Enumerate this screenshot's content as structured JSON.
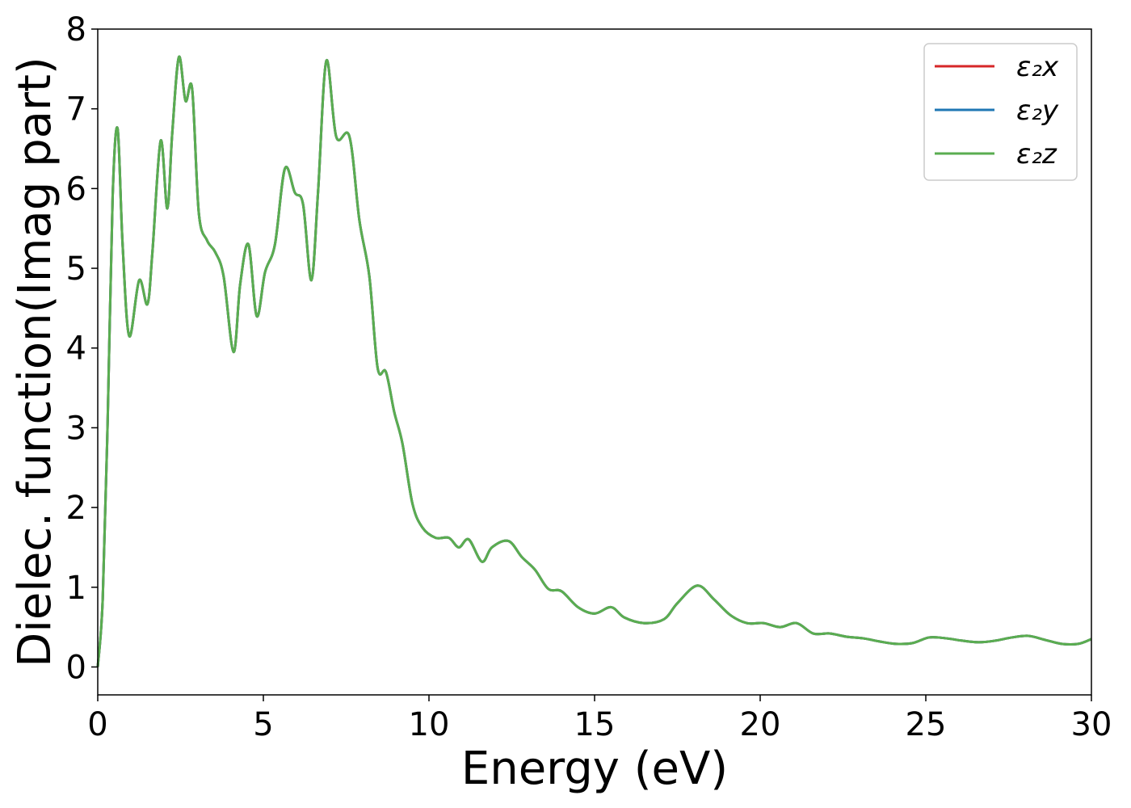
{
  "chart_data": {
    "type": "line",
    "title": "",
    "xlabel": "Energy (eV)",
    "ylabel": "Dielec. function(Imag part)",
    "xlim": [
      0,
      30
    ],
    "ylim": [
      -0.35,
      8.0
    ],
    "xticks": [
      "0",
      "5",
      "10",
      "15",
      "20",
      "25",
      "30"
    ],
    "yticks": [
      "0",
      "1",
      "2",
      "3",
      "4",
      "5",
      "6",
      "7",
      "8"
    ],
    "grid": false,
    "legend_position": "top-right",
    "series": [
      {
        "name": "ε₂x",
        "color": "#d62728",
        "x": [
          0,
          0.15,
          0.3,
          0.45,
          0.6,
          0.75,
          0.95,
          1.25,
          1.5,
          1.65,
          1.9,
          2.1,
          2.25,
          2.45,
          2.65,
          2.85,
          3.05,
          3.3,
          3.55,
          3.8,
          4.1,
          4.3,
          4.55,
          4.8,
          5.05,
          5.35,
          5.65,
          5.95,
          6.2,
          6.45,
          6.65,
          6.9,
          7.2,
          7.6,
          7.9,
          8.2,
          8.45,
          8.7,
          8.95,
          9.2,
          9.5,
          9.8,
          10.2,
          10.6,
          10.9,
          11.2,
          11.6,
          11.9,
          12.4,
          12.8,
          13.2,
          13.6,
          14.0,
          14.5,
          15.0,
          15.5,
          15.9,
          16.5,
          17.1,
          17.5,
          18.1,
          18.6,
          19.1,
          19.6,
          20.1,
          20.6,
          21.1,
          21.6,
          22.1,
          22.6,
          23.1,
          23.6,
          24.1,
          24.6,
          25.1,
          25.6,
          26.1,
          26.6,
          27.1,
          27.6,
          28.1,
          28.6,
          29.1,
          29.6,
          30.0
        ],
        "y": [
          0.0,
          0.85,
          3.1,
          5.9,
          6.75,
          5.3,
          4.15,
          4.85,
          4.55,
          5.2,
          6.6,
          5.75,
          6.7,
          7.65,
          7.1,
          7.25,
          5.7,
          5.35,
          5.2,
          4.9,
          3.95,
          4.8,
          5.3,
          4.4,
          4.95,
          5.3,
          6.25,
          5.95,
          5.8,
          4.85,
          5.95,
          7.6,
          6.65,
          6.65,
          5.6,
          4.9,
          3.75,
          3.7,
          3.2,
          2.8,
          2.05,
          1.75,
          1.62,
          1.62,
          1.5,
          1.6,
          1.32,
          1.5,
          1.58,
          1.38,
          1.22,
          0.98,
          0.95,
          0.75,
          0.67,
          0.75,
          0.62,
          0.55,
          0.6,
          0.8,
          1.02,
          0.85,
          0.65,
          0.55,
          0.55,
          0.5,
          0.55,
          0.42,
          0.42,
          0.38,
          0.36,
          0.32,
          0.29,
          0.3,
          0.37,
          0.36,
          0.33,
          0.31,
          0.33,
          0.37,
          0.39,
          0.34,
          0.29,
          0.29,
          0.35
        ]
      },
      {
        "name": "ε₂y",
        "color": "#1f77b4",
        "x": [
          0,
          0.15,
          0.3,
          0.45,
          0.6,
          0.75,
          0.95,
          1.25,
          1.5,
          1.65,
          1.9,
          2.1,
          2.25,
          2.45,
          2.65,
          2.85,
          3.05,
          3.3,
          3.55,
          3.8,
          4.1,
          4.3,
          4.55,
          4.8,
          5.05,
          5.35,
          5.65,
          5.95,
          6.2,
          6.45,
          6.65,
          6.9,
          7.2,
          7.6,
          7.9,
          8.2,
          8.45,
          8.7,
          8.95,
          9.2,
          9.5,
          9.8,
          10.2,
          10.6,
          10.9,
          11.2,
          11.6,
          11.9,
          12.4,
          12.8,
          13.2,
          13.6,
          14.0,
          14.5,
          15.0,
          15.5,
          15.9,
          16.5,
          17.1,
          17.5,
          18.1,
          18.6,
          19.1,
          19.6,
          20.1,
          20.6,
          21.1,
          21.6,
          22.1,
          22.6,
          23.1,
          23.6,
          24.1,
          24.6,
          25.1,
          25.6,
          26.1,
          26.6,
          27.1,
          27.6,
          28.1,
          28.6,
          29.1,
          29.6,
          30.0
        ],
        "y": [
          0.0,
          0.85,
          3.1,
          5.9,
          6.75,
          5.3,
          4.15,
          4.85,
          4.55,
          5.2,
          6.6,
          5.75,
          6.7,
          7.65,
          7.1,
          7.25,
          5.7,
          5.35,
          5.2,
          4.9,
          3.95,
          4.8,
          5.3,
          4.4,
          4.95,
          5.3,
          6.25,
          5.95,
          5.8,
          4.85,
          5.95,
          7.6,
          6.65,
          6.65,
          5.6,
          4.9,
          3.75,
          3.7,
          3.2,
          2.8,
          2.05,
          1.75,
          1.62,
          1.62,
          1.5,
          1.6,
          1.32,
          1.5,
          1.58,
          1.38,
          1.22,
          0.98,
          0.95,
          0.75,
          0.67,
          0.75,
          0.62,
          0.55,
          0.6,
          0.8,
          1.02,
          0.85,
          0.65,
          0.55,
          0.55,
          0.5,
          0.55,
          0.42,
          0.42,
          0.38,
          0.36,
          0.32,
          0.29,
          0.3,
          0.37,
          0.36,
          0.33,
          0.31,
          0.33,
          0.37,
          0.39,
          0.34,
          0.29,
          0.29,
          0.35
        ]
      },
      {
        "name": "ε₂z",
        "color": "#5aad50",
        "x": [
          0,
          0.15,
          0.3,
          0.45,
          0.6,
          0.75,
          0.95,
          1.25,
          1.5,
          1.65,
          1.9,
          2.1,
          2.25,
          2.45,
          2.65,
          2.85,
          3.05,
          3.3,
          3.55,
          3.8,
          4.1,
          4.3,
          4.55,
          4.8,
          5.05,
          5.35,
          5.65,
          5.95,
          6.2,
          6.45,
          6.65,
          6.9,
          7.2,
          7.6,
          7.9,
          8.2,
          8.45,
          8.7,
          8.95,
          9.2,
          9.5,
          9.8,
          10.2,
          10.6,
          10.9,
          11.2,
          11.6,
          11.9,
          12.4,
          12.8,
          13.2,
          13.6,
          14.0,
          14.5,
          15.0,
          15.5,
          15.9,
          16.5,
          17.1,
          17.5,
          18.1,
          18.6,
          19.1,
          19.6,
          20.1,
          20.6,
          21.1,
          21.6,
          22.1,
          22.6,
          23.1,
          23.6,
          24.1,
          24.6,
          25.1,
          25.6,
          26.1,
          26.6,
          27.1,
          27.6,
          28.1,
          28.6,
          29.1,
          29.6,
          30.0
        ],
        "y": [
          0.0,
          0.85,
          3.1,
          5.9,
          6.75,
          5.3,
          4.15,
          4.85,
          4.55,
          5.2,
          6.6,
          5.75,
          6.7,
          7.65,
          7.1,
          7.25,
          5.7,
          5.35,
          5.2,
          4.9,
          3.95,
          4.8,
          5.3,
          4.4,
          4.95,
          5.3,
          6.25,
          5.95,
          5.8,
          4.85,
          5.95,
          7.6,
          6.65,
          6.65,
          5.6,
          4.9,
          3.75,
          3.7,
          3.2,
          2.8,
          2.05,
          1.75,
          1.62,
          1.62,
          1.5,
          1.6,
          1.32,
          1.5,
          1.58,
          1.38,
          1.22,
          0.98,
          0.95,
          0.75,
          0.67,
          0.75,
          0.62,
          0.55,
          0.6,
          0.8,
          1.02,
          0.85,
          0.65,
          0.55,
          0.55,
          0.5,
          0.55,
          0.42,
          0.42,
          0.38,
          0.36,
          0.32,
          0.29,
          0.3,
          0.37,
          0.36,
          0.33,
          0.31,
          0.33,
          0.37,
          0.39,
          0.34,
          0.29,
          0.29,
          0.35
        ]
      }
    ]
  }
}
